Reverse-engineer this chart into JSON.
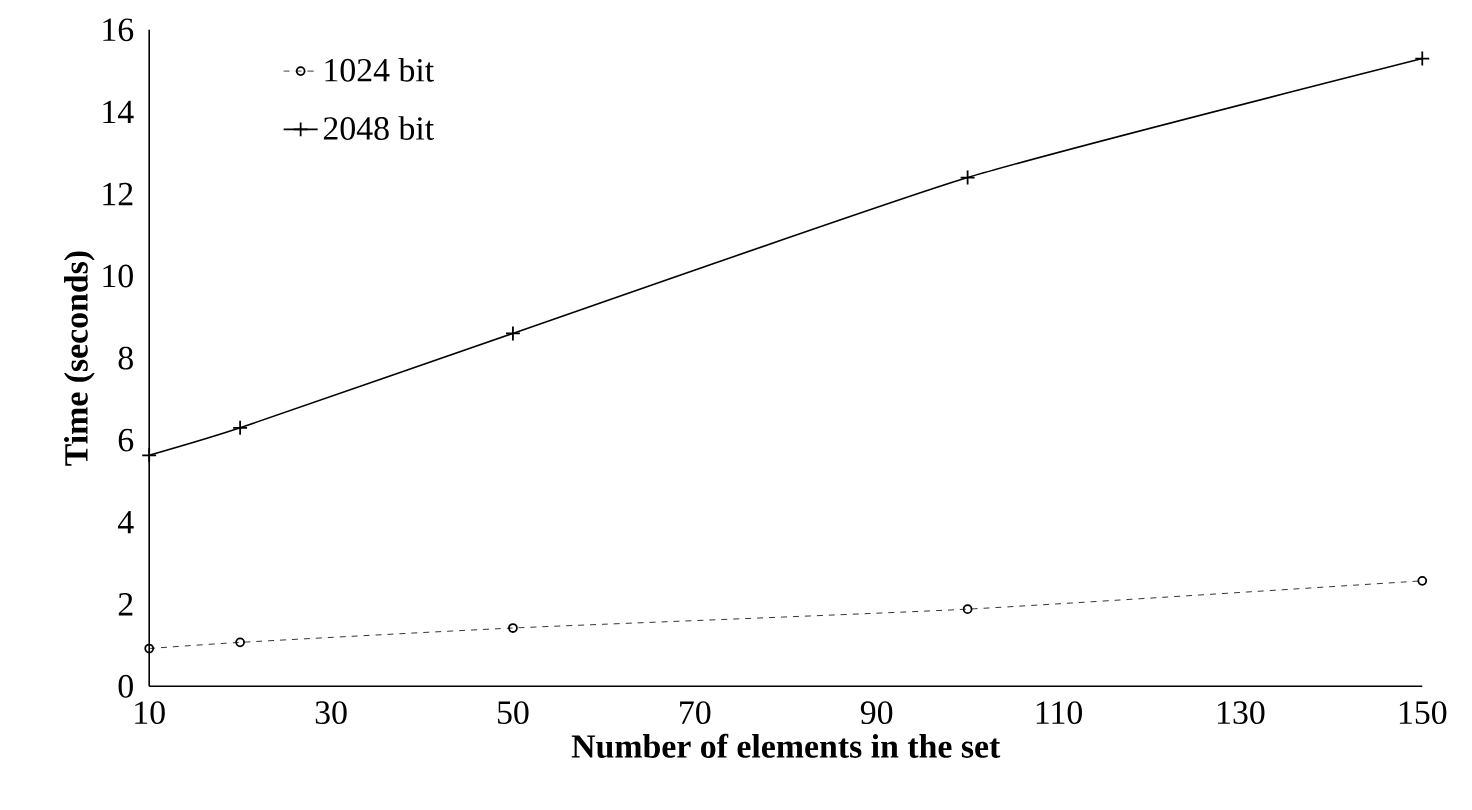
{
  "chart_data": {
    "type": "line",
    "xlabel": "Number of elements in the set",
    "ylabel": "Time (seconds)",
    "x": [
      10,
      20,
      50,
      100,
      150
    ],
    "series": [
      {
        "name": "1024 bit",
        "color": "#000000",
        "values": [
          0.92,
          1.07,
          1.42,
          1.88,
          2.57
        ],
        "marker": "circle",
        "line_style": "dashed"
      },
      {
        "name": "2048 bit",
        "color": "#000000",
        "values": [
          5.63,
          6.3,
          8.6,
          12.4,
          15.3
        ],
        "marker": "cross",
        "line_style": "solid"
      }
    ],
    "xlim": [
      10,
      150
    ],
    "xticks": [
      10,
      30,
      50,
      70,
      90,
      110,
      130,
      150
    ],
    "ylim": [
      0,
      16
    ],
    "yticks": [
      0,
      2,
      4,
      6,
      8,
      10,
      12,
      14,
      16
    ],
    "grid": false,
    "legend": "top left"
  }
}
